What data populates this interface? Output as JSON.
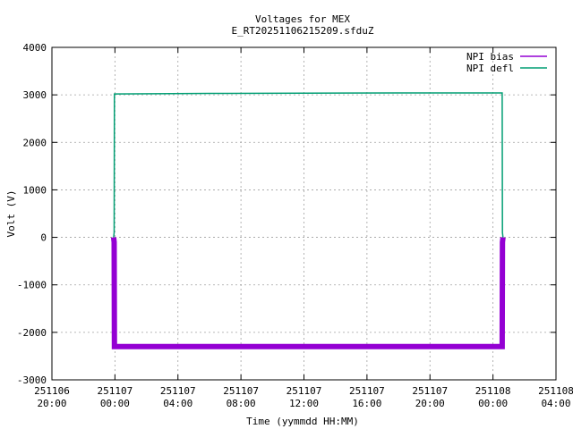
{
  "chart_data": {
    "type": "line",
    "title": "Voltages for MEX",
    "subtitle": "E_RT20251106215209.sfduZ",
    "xlabel": "Time (yymmdd HH:MM)",
    "ylabel": "Volt (V)",
    "ylim": [
      -3000,
      4000
    ],
    "yticks": [
      -3000,
      -2000,
      -1000,
      0,
      1000,
      2000,
      3000,
      4000
    ],
    "xlim": [
      "2025-11-06 20:00",
      "2025-11-08 04:00"
    ],
    "xticks": [
      {
        "date": "251106",
        "time": "20:00"
      },
      {
        "date": "251107",
        "time": "00:00"
      },
      {
        "date": "251107",
        "time": "04:00"
      },
      {
        "date": "251107",
        "time": "08:00"
      },
      {
        "date": "251107",
        "time": "12:00"
      },
      {
        "date": "251107",
        "time": "16:00"
      },
      {
        "date": "251107",
        "time": "20:00"
      },
      {
        "date": "251108",
        "time": "00:00"
      },
      {
        "date": "251108",
        "time": "04:00"
      }
    ],
    "grid": true,
    "legend_position": "top-right",
    "series": [
      {
        "name": "NPI bias",
        "color": "#9400d3",
        "x": [
          "2025-11-06 23:55",
          "2025-11-06 23:57",
          "2025-11-06 23:58",
          "2025-11-07 06:00",
          "2025-11-07 12:00",
          "2025-11-07 18:00",
          "2025-11-08 00:35",
          "2025-11-08 00:36",
          "2025-11-08 00:38"
        ],
        "y": [
          0,
          -100,
          -2300,
          -2300,
          -2300,
          -2300,
          -2300,
          -100,
          0
        ]
      },
      {
        "name": "NPI defl",
        "color": "#009e73",
        "x": [
          "2025-11-06 23:55",
          "2025-11-06 23:57",
          "2025-11-06 23:58",
          "2025-11-07 06:00",
          "2025-11-07 12:00",
          "2025-11-07 18:00",
          "2025-11-08 00:35",
          "2025-11-08 00:36",
          "2025-11-08 00:38"
        ],
        "y": [
          0,
          100,
          3020,
          3030,
          3035,
          3040,
          3040,
          100,
          0
        ]
      }
    ]
  }
}
